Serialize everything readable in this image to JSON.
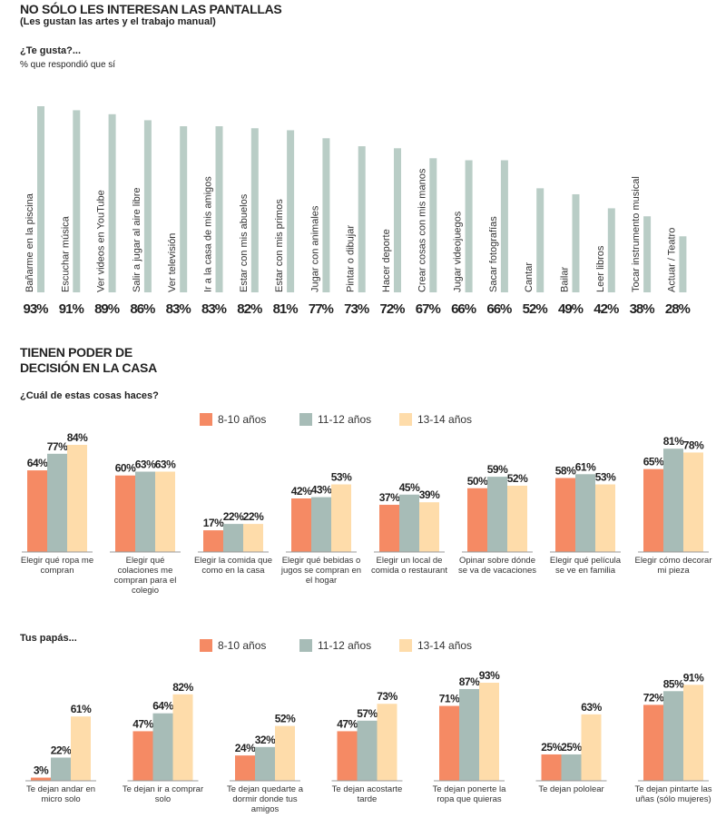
{
  "chart_data": [
    {
      "type": "bar",
      "title": "NO SÓLO LES INTERESAN LAS PANTALLAS",
      "subtitle": "(Les gustan las artes y el trabajo manual)",
      "question": "¿Te gusta?...",
      "note": "% que respondió que sí",
      "color": "#b9cdc6",
      "categories": [
        "Bañarme en la piscina",
        "Escuchar música",
        "Ver videos en YouTube",
        "Salir a jugar al aire libre",
        "Ver televisión",
        "Ir a la casa de mis amigos",
        "Estar con mis abuelos",
        "Estar con mis primos",
        "Jugar con animales",
        "Pintar o dibujar",
        "Hacer deporte",
        "Crear cosas con mis manos",
        "Jugar videojuegos",
        "Sacar fotografías",
        "Cantar",
        "Bailar",
        "Leer libros",
        "Tocar instrumento musical",
        "Actuar / Teatro"
      ],
      "values": [
        93,
        91,
        89,
        86,
        83,
        83,
        82,
        81,
        77,
        73,
        72,
        67,
        66,
        66,
        52,
        49,
        42,
        38,
        28
      ],
      "value_labels": [
        "93%",
        "91%",
        "89%",
        "86%",
        "83%",
        "83%",
        "82%",
        "81%",
        "77%",
        "73%",
        "72%",
        "67%",
        "66%",
        "66%",
        "52%",
        "49%",
        "42%",
        "38%",
        "28%"
      ]
    },
    {
      "type": "grouped_bar",
      "title": "TIENEN PODER DE DECISIÓN EN LA CASA",
      "question": "¿Cuál de estas cosas haces?",
      "categories": [
        "Elegir qué ropa me compran",
        "Elegir qué colaciones me compran para el colegio",
        "Elegir la comida que como en la casa",
        "Elegir qué bebidas o jugos se compran en el hogar",
        "Elegir un local de comida o restaurant",
        "Opinar sobre dónde se va de vacaciones",
        "Elegir qué película se ve en familia",
        "Elegir cómo decorar mi pieza"
      ],
      "series": [
        {
          "name": "8-10 años",
          "color": "#f58a64",
          "values": [
            64,
            60,
            17,
            42,
            37,
            50,
            58,
            65
          ],
          "value_labels": [
            "64%",
            "60%",
            "17%",
            "42%",
            "37%",
            "50%",
            "58%",
            "65%"
          ]
        },
        {
          "name": "11-12 años",
          "color": "#a7bcb7",
          "values": [
            77,
            63,
            22,
            43,
            45,
            59,
            61,
            81
          ],
          "value_labels": [
            "77%",
            "63%",
            "22%",
            "43%",
            "45%",
            "59%",
            "61%",
            "81%"
          ]
        },
        {
          "name": "13-14 años",
          "color": "#fedcaa",
          "values": [
            84,
            63,
            22,
            53,
            39,
            52,
            53,
            78
          ],
          "value_labels": [
            "84%",
            "63%",
            "22%",
            "53%",
            "39%",
            "52%",
            "53%",
            "78%"
          ]
        }
      ]
    },
    {
      "type": "grouped_bar",
      "question": "Tus papás...",
      "categories": [
        "Te dejan andar en micro solo",
        "Te dejan ir a comprar solo",
        "Te dejan quedarte a dormir donde tus amigos",
        "Te dejan acostarte tarde",
        "Te dejan ponerte la ropa que quieras",
        "Te dejan pololear",
        "Te dejan pintarte las uñas (sólo mujeres)"
      ],
      "series": [
        {
          "name": "8-10 años",
          "color": "#f58a64",
          "values": [
            3,
            47,
            24,
            47,
            71,
            25,
            72
          ],
          "value_labels": [
            "3%",
            "47%",
            "24%",
            "47%",
            "71%",
            "25%",
            "72%"
          ]
        },
        {
          "name": "11-12 años",
          "color": "#a7bcb7",
          "values": [
            22,
            64,
            32,
            57,
            87,
            25,
            85
          ],
          "value_labels": [
            "22%",
            "64%",
            "32%",
            "57%",
            "87%",
            "25%",
            "85%"
          ]
        },
        {
          "name": "13-14 años",
          "color": "#fedcaa",
          "values": [
            61,
            82,
            52,
            73,
            93,
            63,
            91
          ],
          "value_labels": [
            "61%",
            "82%",
            "52%",
            "73%",
            "93%",
            "63%",
            "91%"
          ]
        }
      ]
    }
  ]
}
